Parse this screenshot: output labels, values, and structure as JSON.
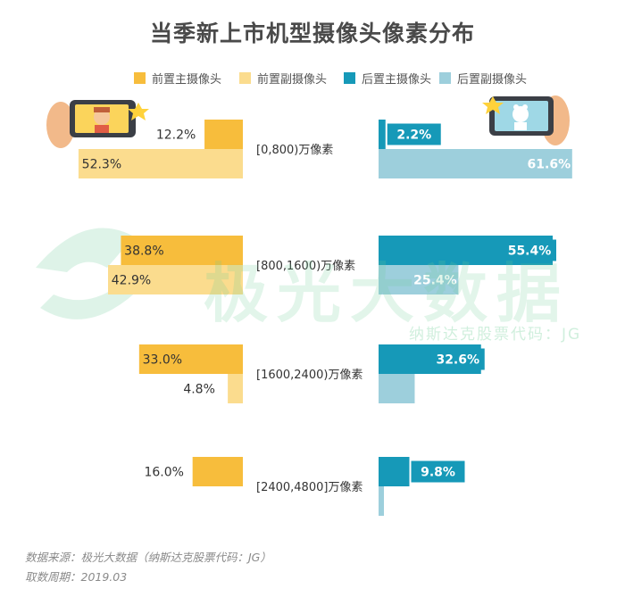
{
  "chart_data": {
    "type": "bar",
    "title": "当季新上市机型摄像头像素分布",
    "categories": [
      "[0,800)万像素",
      "[800,1600)万像素",
      "[1600,2400)万像素",
      "[2400,4800]万像素"
    ],
    "series": [
      {
        "name": "前置主摄像头",
        "side": "left",
        "color": "#f7bd3c",
        "values": [
          12.2,
          38.8,
          33.0,
          16.0
        ]
      },
      {
        "name": "前置副摄像头",
        "side": "left",
        "color": "#fbdc8e",
        "values": [
          52.3,
          42.9,
          4.8,
          null
        ]
      },
      {
        "name": "后置主摄像头",
        "side": "right",
        "color": "#1699b8",
        "values": [
          2.2,
          55.4,
          32.6,
          9.8
        ]
      },
      {
        "name": "后置副摄像头",
        "side": "right",
        "color": "#9dcfdc",
        "values": [
          61.6,
          25.4,
          11.5,
          1.5
        ]
      }
    ],
    "value_suffix": "%",
    "legend_position": "top",
    "xlim": [
      0,
      70
    ]
  },
  "watermark": {
    "brand": "极光大数据",
    "sub": "纳斯达克股票代码：JG"
  },
  "footer": {
    "source": "数据来源：极光大数据（纳斯达克股票代码：JG）",
    "period": "取数周期：2019.03"
  }
}
